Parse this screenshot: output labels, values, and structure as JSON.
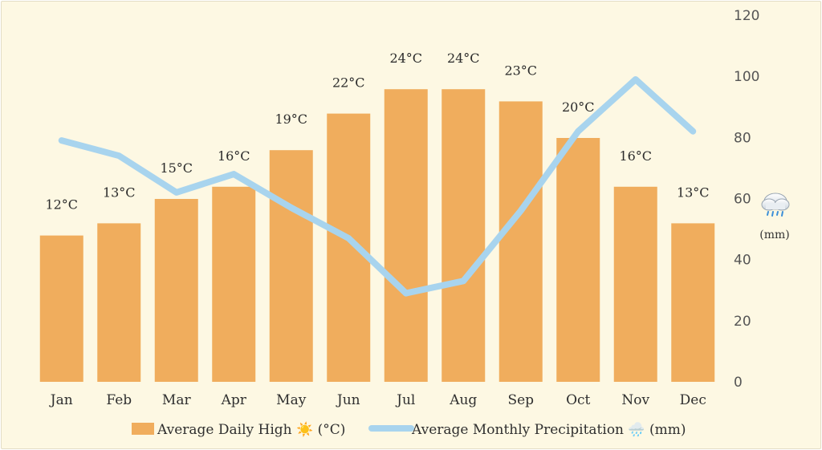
{
  "chart_data": {
    "type": "bar",
    "categories": [
      "Jan",
      "Feb",
      "Mar",
      "Apr",
      "May",
      "Jun",
      "Jul",
      "Aug",
      "Sep",
      "Oct",
      "Nov",
      "Dec"
    ],
    "series": [
      {
        "name": "Average Daily High ☀️ (°C)",
        "type": "bar",
        "values": [
          12,
          13,
          15,
          16,
          19,
          22,
          24,
          24,
          23,
          20,
          16,
          13
        ],
        "data_labels": [
          "12°C",
          "13°C",
          "15°C",
          "16°C",
          "19°C",
          "22°C",
          "24°C",
          "24°C",
          "23°C",
          "20°C",
          "16°C",
          "13°C"
        ],
        "color": "#f0ad5d"
      },
      {
        "name": "Average Monthly Precipitation 🌧️ (mm)",
        "type": "line",
        "values": [
          79,
          74,
          62,
          68,
          57,
          47,
          29,
          33,
          56,
          82,
          99,
          82
        ],
        "color": "#a8d4ee"
      }
    ],
    "y2": {
      "ticks": [
        0,
        20,
        40,
        60,
        80,
        100,
        120
      ],
      "ylim": [
        0,
        120
      ],
      "icon": "rain-cloud-icon",
      "unit_label": "(mm)"
    },
    "legend_position": "bottom",
    "grid": false
  },
  "colors": {
    "background": "#fdf8e3",
    "bar": "#f0ad5d",
    "line": "#a8d4ee"
  }
}
